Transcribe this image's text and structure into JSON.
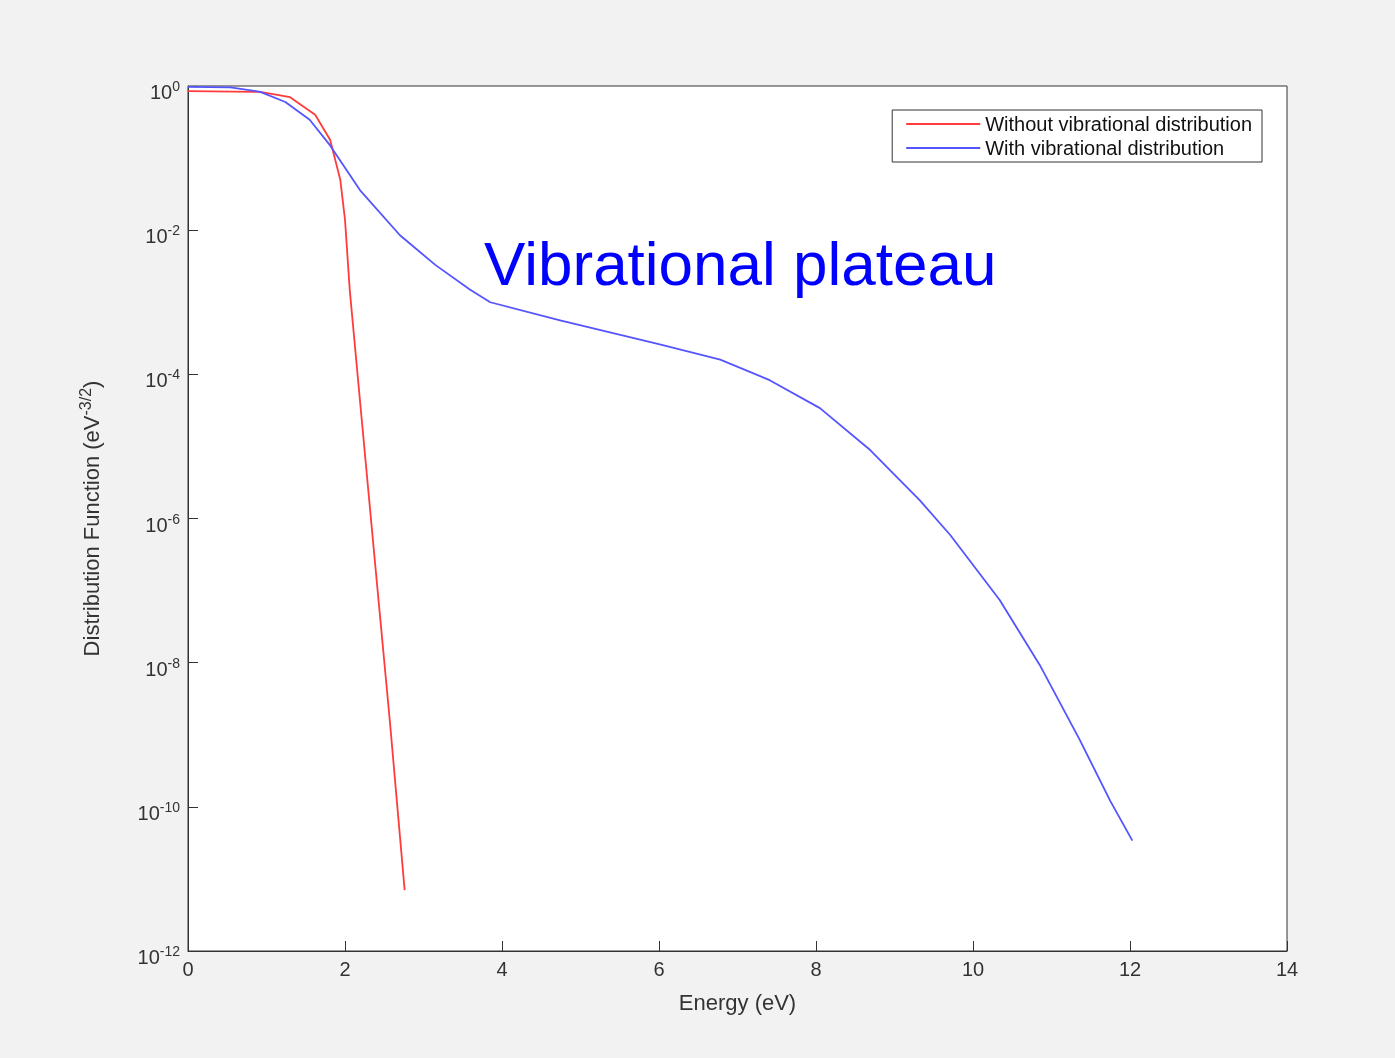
{
  "chart_data": {
    "type": "line",
    "xlabel": "Energy (eV)",
    "ylabel": "Distribution Function (eV$^{-3/2}$)",
    "log": "y",
    "xlim": [
      0,
      14
    ],
    "xticks": [
      0,
      2,
      4,
      6,
      8,
      10,
      12,
      14
    ],
    "ylim": [
      1e-12,
      1
    ],
    "yticks": [
      {
        "value": 1e-12,
        "label": "10$^{-12}$"
      },
      {
        "value": 1e-10,
        "label": "10$^{-10}$"
      },
      {
        "value": 1e-08,
        "label": "10$^{-8}$"
      },
      {
        "value": 1e-06,
        "label": "10$^{-6}$"
      },
      {
        "value": 0.0001,
        "label": "10$^{-4}$"
      },
      {
        "value": 0.01,
        "label": "10$^{-2}$"
      },
      {
        "value": 1,
        "label": "10$^{0}$"
      }
    ],
    "grid": false,
    "legend": "top right",
    "marker": "none",
    "line_style": "solid",
    "annotations": [
      "Vibrational plateau"
    ],
    "series": [
      {
        "name": "Without vibrational distribution",
        "color": "#ff3b3b",
        "x": [
          0,
          0.92,
          1.3,
          1.62,
          1.81,
          1.94,
          2.0,
          2.06,
          2.19,
          2.38,
          2.57,
          2.76
        ],
        "values": [
          0.85,
          0.83,
          0.7,
          0.4,
          0.18,
          0.05,
          0.014,
          0.0015,
          4.4e-05,
          2.6e-07,
          1.6e-09,
          7e-12
        ]
      },
      {
        "name": "With vibrational distribution",
        "color": "#5555ff",
        "x": [
          0,
          0.54,
          0.92,
          1.24,
          1.55,
          1.81,
          2.19,
          2.7,
          3.15,
          3.59,
          3.85,
          4.74,
          6.01,
          6.78,
          7.41,
          8.05,
          8.69,
          9.32,
          9.71,
          10.34,
          10.85,
          11.36,
          11.75,
          12.03
        ],
        "values": [
          0.97,
          0.96,
          0.83,
          0.6,
          0.34,
          0.15,
          0.036,
          0.0085,
          0.0033,
          0.0015,
          0.001,
          0.00056,
          0.00026,
          0.00016,
          8.3e-05,
          3.4e-05,
          8.9e-06,
          1.8e-06,
          5.9e-07,
          7.4e-08,
          9.3e-09,
          8.5e-10,
          1.2e-10,
          3.4e-11
        ]
      }
    ]
  }
}
